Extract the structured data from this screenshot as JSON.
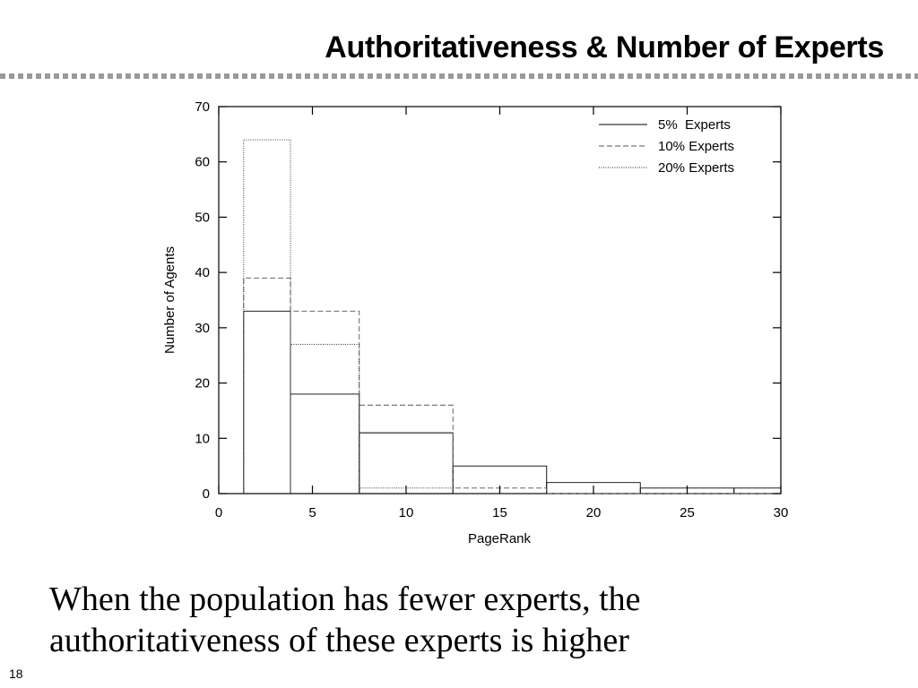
{
  "slide": {
    "title": "Authoritativeness & Number of Experts",
    "caption_lines": [
      "When the population has fewer experts, the",
      "authoritativeness of these experts is higher"
    ],
    "page_number": "18"
  },
  "chart_data": {
    "type": "bar",
    "title": "",
    "xlabel": "PageRank",
    "ylabel": "Number of Agents",
    "xlim": [
      0,
      30
    ],
    "ylim": [
      0,
      70
    ],
    "x_ticks": [
      "0",
      "5",
      "10",
      "15",
      "20",
      "25",
      "30"
    ],
    "y_ticks": [
      "0",
      "10",
      "20",
      "30",
      "40",
      "50",
      "60",
      "70"
    ],
    "legend_position": "top-right",
    "grid": false,
    "bin_edges": [
      1.33,
      3.83,
      7.5,
      12.5,
      17.5,
      22.5,
      27.5,
      30
    ],
    "series": [
      {
        "name": "5%  Experts",
        "line_style": "solid",
        "values": [
          33,
          18,
          11,
          5,
          2,
          1,
          1
        ]
      },
      {
        "name": "10% Experts",
        "line_style": "dashed",
        "values": [
          39,
          33,
          16,
          1,
          0,
          0,
          0
        ]
      },
      {
        "name": "20% Experts",
        "line_style": "dotted",
        "values": [
          64,
          27,
          1,
          0,
          0,
          0,
          0
        ]
      }
    ]
  }
}
